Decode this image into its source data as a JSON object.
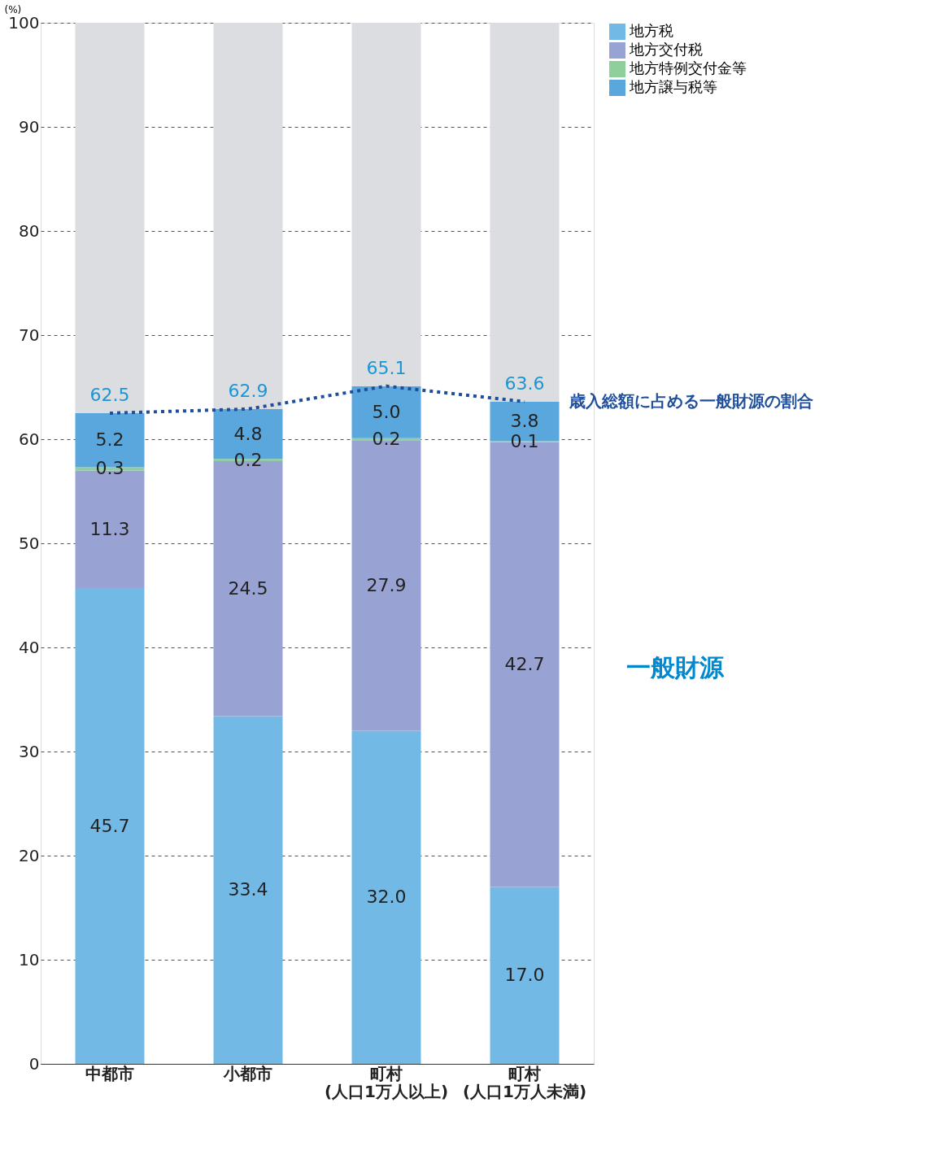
{
  "chart_data": {
    "type": "bar",
    "stacked": true,
    "ylabel": "(%)",
    "categories": [
      "中都市",
      "小都市",
      "町村\n(人口1万人以上)",
      "町村\n(人口1万人未満)"
    ],
    "series": [
      {
        "name": "地方税",
        "color": "#72b9e5",
        "values": [
          45.7,
          33.4,
          32.0,
          17.0
        ],
        "value_labels": [
          "45.7",
          "33.4",
          "32.0",
          "17.0"
        ]
      },
      {
        "name": "地方交付税",
        "color": "#98a3d4",
        "values": [
          11.3,
          24.5,
          27.9,
          42.7
        ],
        "value_labels": [
          "11.3",
          "24.5",
          "27.9",
          "42.7"
        ]
      },
      {
        "name": "地方特例交付金等",
        "color": "#8fcf9b",
        "values": [
          0.3,
          0.2,
          0.2,
          0.1
        ],
        "value_labels": [
          "0.3",
          "0.2",
          "0.2",
          "0.1"
        ]
      },
      {
        "name": "地方譲与税等",
        "color": "#5aa7de",
        "values": [
          5.2,
          4.8,
          5.0,
          3.8
        ],
        "value_labels": [
          "5.2",
          "4.8",
          "5.0",
          "3.8"
        ]
      },
      {
        "color": "#dcdde0",
        "values": [
          37.5,
          37.1,
          34.9,
          36.4
        ]
      },
      {
        "type": "line",
        "name": "歳入総額に占める一般財源の割合",
        "color": "#1f4e9c",
        "line_style": "dotted",
        "values": [
          62.5,
          62.9,
          65.1,
          63.6
        ],
        "value_labels": [
          "62.5",
          "62.9",
          "65.1",
          "63.6"
        ]
      }
    ],
    "annotations": [
      "一般財源"
    ],
    "ylim": [
      0,
      100
    ],
    "yticks": [
      0,
      10,
      20,
      30,
      40,
      50,
      60,
      70,
      80,
      90,
      100
    ],
    "grid": "y",
    "legend": "right"
  }
}
